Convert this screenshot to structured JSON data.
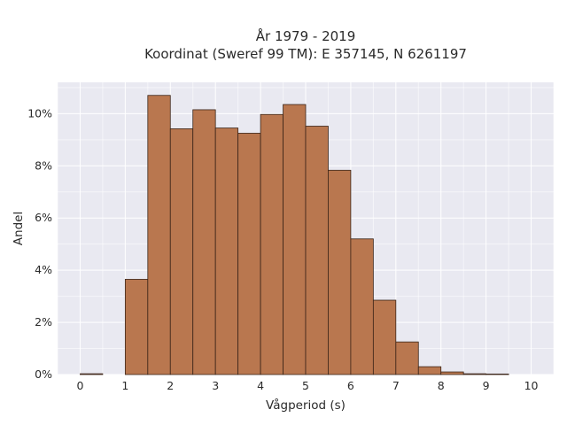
{
  "chart_data": {
    "type": "bar",
    "title_line1": "År 1979 - 2019",
    "title_line2": "Koordinat (Sweref 99 TM): E 357145, N 6261197",
    "xlabel": "Vågperiod (s)",
    "ylabel": "Andel",
    "xlim": [
      -0.5,
      10.5
    ],
    "ylim": [
      0,
      11.2
    ],
    "x_ticks": [
      0,
      1,
      2,
      3,
      4,
      5,
      6,
      7,
      8,
      9,
      10
    ],
    "x_tick_labels": [
      "0",
      "1",
      "2",
      "3",
      "4",
      "5",
      "6",
      "7",
      "8",
      "9",
      "10"
    ],
    "y_ticks": [
      0,
      2,
      4,
      6,
      8,
      10
    ],
    "y_tick_labels": [
      "0%",
      "2%",
      "4%",
      "6%",
      "8%",
      "10%"
    ],
    "grid": true,
    "bin_width": 0.5,
    "bins": [
      {
        "start": 0.0,
        "value": 0.03
      },
      {
        "start": 0.5,
        "value": 0.0
      },
      {
        "start": 1.0,
        "value": 3.65
      },
      {
        "start": 1.5,
        "value": 10.7
      },
      {
        "start": 2.0,
        "value": 9.42
      },
      {
        "start": 2.5,
        "value": 10.15
      },
      {
        "start": 3.0,
        "value": 9.45
      },
      {
        "start": 3.5,
        "value": 9.25
      },
      {
        "start": 4.0,
        "value": 9.97
      },
      {
        "start": 4.5,
        "value": 10.35
      },
      {
        "start": 5.0,
        "value": 9.52
      },
      {
        "start": 5.5,
        "value": 7.83
      },
      {
        "start": 6.0,
        "value": 5.2
      },
      {
        "start": 6.5,
        "value": 2.85
      },
      {
        "start": 7.0,
        "value": 1.25
      },
      {
        "start": 7.5,
        "value": 0.3
      },
      {
        "start": 8.0,
        "value": 0.1
      },
      {
        "start": 8.5,
        "value": 0.03
      },
      {
        "start": 9.0,
        "value": 0.02
      }
    ],
    "colors": {
      "bar": "#b9774f",
      "edge": "#3a2418",
      "plot_bg": "#e9e9f1"
    }
  }
}
